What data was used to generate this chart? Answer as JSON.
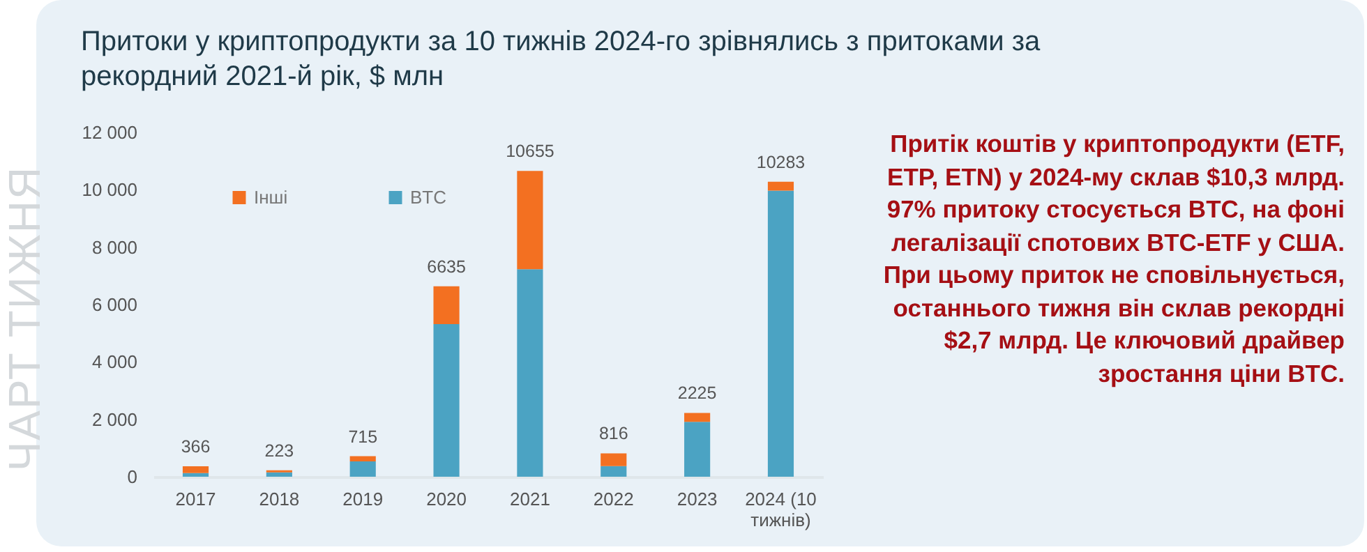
{
  "chart_data": {
    "type": "bar",
    "title": "Притоки у криптопродукти за 10 тижнів 2024-го зрівнялись з притоками за рекордний 2021-й рік, $ млн",
    "categories": [
      "2017",
      "2018",
      "2019",
      "2020",
      "2021",
      "2022",
      "2023",
      "2024 (10\nтижнів)"
    ],
    "series": [
      {
        "name": "BTC",
        "color": "#4ba3c3",
        "values": [
          130,
          150,
          535,
          5320,
          7230,
          370,
          1910,
          9970
        ]
      },
      {
        "name": "Інші",
        "color": "#f37021",
        "values": [
          236,
          73,
          180,
          1315,
          3425,
          446,
          315,
          313
        ]
      }
    ],
    "stacked": true,
    "totals": [
      "366",
      "223",
      "715",
      "6635",
      "10655",
      "816",
      "2225",
      "10283"
    ],
    "ylim": [
      0,
      12000
    ],
    "yticks": [
      {
        "value": 0,
        "label": "0"
      },
      {
        "value": 2000,
        "label": "2 000"
      },
      {
        "value": 4000,
        "label": "4 000"
      },
      {
        "value": 6000,
        "label": "6 000"
      },
      {
        "value": 8000,
        "label": "8 000"
      },
      {
        "value": 10000,
        "label": "10 000"
      },
      {
        "value": 12000,
        "label": "12 000"
      }
    ],
    "grid": false,
    "legend": "top left",
    "annotations": [
      "ЧАРТ ТИЖНЯ",
      "Притік коштів у криптопродукти (ETF, ETP, ETN) у 2024-му склав $10,3 млрд. 97% притоку стосується BTC, на фоні легалізації спотових BTC-ETF у США. При цьому приток не сповільнується, останнього тижня він склав рекордні $2,7 млрд. Це ключовий драйвер зростання ціни BTC."
    ]
  }
}
